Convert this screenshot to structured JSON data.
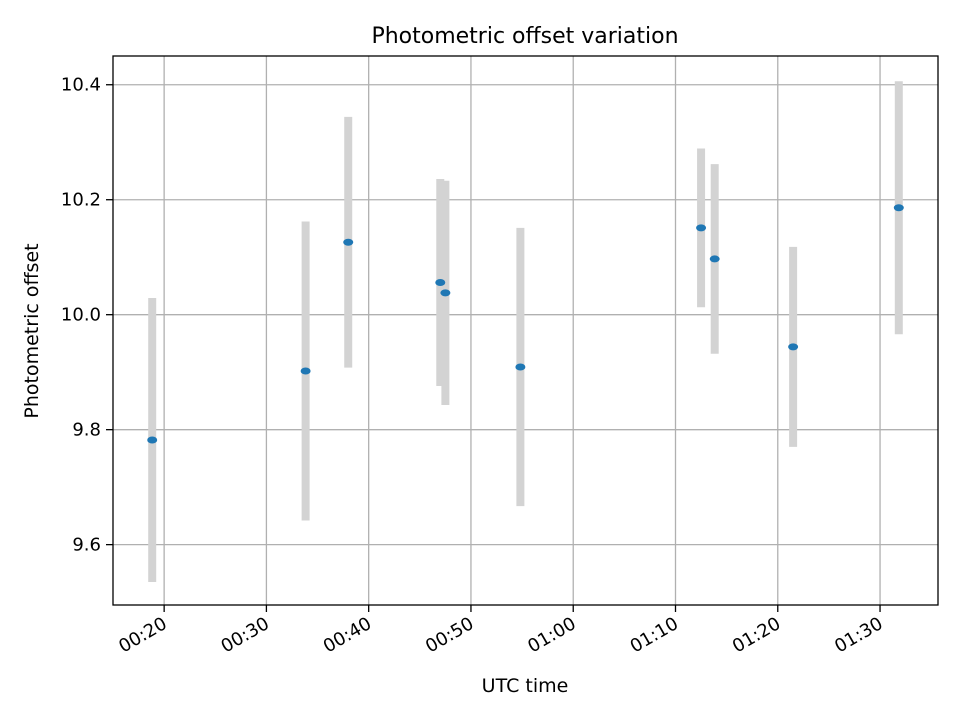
{
  "chart_data": {
    "type": "scatter",
    "title": "Photometric offset variation",
    "xlabel": "UTC time",
    "ylabel": "Photometric offset",
    "x_ticks": [
      "00:20",
      "00:30",
      "00:40",
      "00:50",
      "01:00",
      "01:10",
      "01:20",
      "01:30"
    ],
    "y_ticks": [
      "9.6",
      "9.8",
      "10.0",
      "10.2",
      "10.4"
    ],
    "xlim": [
      "00:15:00",
      "01:35:40"
    ],
    "ylim": [
      9.495,
      10.45
    ],
    "grid": true,
    "points": [
      {
        "x": "00:18:50",
        "y": 9.782,
        "err": 0.247
      },
      {
        "x": "00:33:50",
        "y": 9.902,
        "err": 0.26
      },
      {
        "x": "00:38:00",
        "y": 10.126,
        "err": 0.218
      },
      {
        "x": "00:47:00",
        "y": 10.056,
        "err": 0.18
      },
      {
        "x": "00:47:30",
        "y": 10.038,
        "err": 0.195
      },
      {
        "x": "00:54:50",
        "y": 9.909,
        "err": 0.242
      },
      {
        "x": "01:12:30",
        "y": 10.151,
        "err": 0.138
      },
      {
        "x": "01:13:50",
        "y": 10.097,
        "err": 0.165
      },
      {
        "x": "01:21:30",
        "y": 9.944,
        "err": 0.174
      },
      {
        "x": "01:31:50",
        "y": 10.186,
        "err": 0.22
      }
    ],
    "colors": {
      "marker": "#1f77b4",
      "errorbar": "#d3d3d3",
      "grid": "#b0b0b0"
    }
  }
}
